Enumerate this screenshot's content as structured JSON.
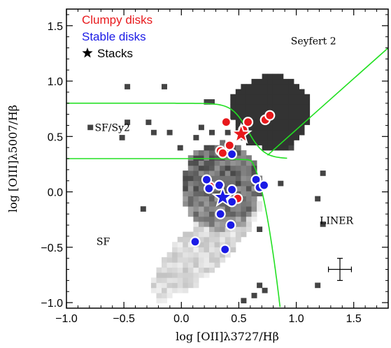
{
  "chart_data": {
    "type": "scatter",
    "xlabel": "log [OII]λ3727/Hβ",
    "ylabel": "log [OIII]λ5007/Hβ",
    "xlim": [
      -1.0,
      1.8
    ],
    "ylim": [
      -1.05,
      1.65
    ],
    "x_ticks": [
      "−1.0",
      "−0.5",
      "0.0",
      "0.5",
      "1.0",
      "1.5"
    ],
    "x_tick_values": [
      -1.0,
      -0.5,
      0.0,
      0.5,
      1.0,
      1.5
    ],
    "y_ticks": [
      "−1.0",
      "−0.5",
      "0.0",
      "0.5",
      "1.0",
      "1.5"
    ],
    "y_tick_values": [
      -1.0,
      -0.5,
      0.0,
      0.5,
      1.0,
      1.5
    ],
    "legend": {
      "placement": "top-left",
      "entries": [
        {
          "label": "Clumpy disks",
          "color": "#e8191c"
        },
        {
          "label": "Stable disks",
          "color": "#1a1ae6"
        },
        {
          "label": "Stacks",
          "color": "#000000",
          "marker": "star"
        }
      ]
    },
    "regions": [
      {
        "label": "Seyfert 2",
        "x": 1.15,
        "y": 1.33
      },
      {
        "label": "SF/Sy2",
        "x": -0.6,
        "y": 0.55
      },
      {
        "label": "LINER",
        "x": 1.35,
        "y": -0.29
      },
      {
        "label": "SF",
        "x": -0.68,
        "y": -0.48
      }
    ],
    "series": [
      {
        "name": "Clumpy disks",
        "color": "#e8191c",
        "points": [
          {
            "x": 0.39,
            "y": 0.63
          },
          {
            "x": 0.54,
            "y": 0.56
          },
          {
            "x": 0.58,
            "y": 0.63
          },
          {
            "x": 0.42,
            "y": 0.42
          },
          {
            "x": 0.34,
            "y": 0.37
          },
          {
            "x": 0.36,
            "y": 0.35
          },
          {
            "x": 0.73,
            "y": 0.65
          },
          {
            "x": 0.77,
            "y": 0.69
          },
          {
            "x": 0.25,
            "y": 0.05
          },
          {
            "x": 0.49,
            "y": -0.06
          }
        ]
      },
      {
        "name": "Stable disks",
        "color": "#1a1ae6",
        "points": [
          {
            "x": 0.44,
            "y": 0.34
          },
          {
            "x": 0.22,
            "y": 0.11
          },
          {
            "x": 0.24,
            "y": 0.03
          },
          {
            "x": 0.33,
            "y": 0.06
          },
          {
            "x": 0.44,
            "y": 0.02
          },
          {
            "x": 0.65,
            "y": 0.11
          },
          {
            "x": 0.68,
            "y": 0.04
          },
          {
            "x": 0.72,
            "y": 0.06
          },
          {
            "x": 0.44,
            "y": -0.09
          },
          {
            "x": 0.34,
            "y": -0.2
          },
          {
            "x": 0.43,
            "y": -0.3
          },
          {
            "x": 0.12,
            "y": -0.45
          },
          {
            "x": 0.38,
            "y": -0.52
          }
        ]
      }
    ],
    "stacks": [
      {
        "name": "Clumpy disks stack",
        "color": "#e8191c",
        "x": 0.52,
        "y": 0.52
      },
      {
        "name": "Stable disks stack",
        "color": "#1a1ae6",
        "x": 0.36,
        "y": -0.05
      }
    ],
    "error_bar": {
      "x": 1.38,
      "y": -0.7,
      "xerr": 0.1,
      "yerr": 0.1
    },
    "background": "2D density histogram of local galaxies, grayscale (dark = Seyfert 2 / composite branch, light = star-forming branch)",
    "divider_color": "#22e022",
    "colors": {
      "clumpy": "#e8191c",
      "stable": "#1a1ae6",
      "divider": "#22e022"
    }
  }
}
